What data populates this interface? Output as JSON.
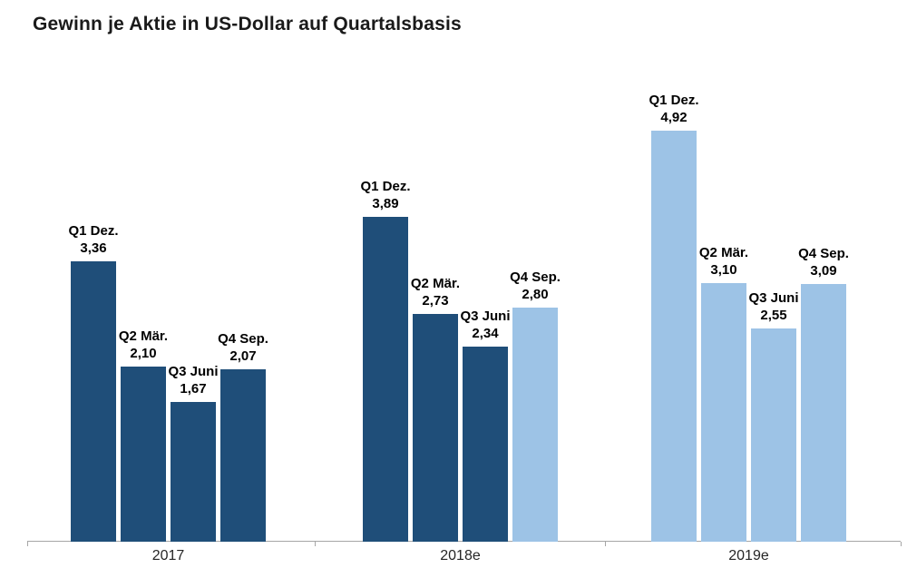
{
  "chart_data": {
    "type": "bar",
    "title": "Gewinn je Aktie in US-Dollar auf Quartalsbasis",
    "xlabel": "",
    "ylabel": "",
    "ylim": [
      0,
      5.4
    ],
    "grid": false,
    "legend": null,
    "value_decimal_separator": ",",
    "series_colors": {
      "actual": "#1F4E79",
      "estimate": "#9DC3E6"
    },
    "axis_color": "#A6A6A6",
    "groups": [
      {
        "label": "2017",
        "bars": [
          {
            "name": "Q1 Dez.",
            "value": 3.36,
            "value_label": "3,36",
            "style": "actual"
          },
          {
            "name": "Q2 Mär.",
            "value": 2.1,
            "value_label": "2,10",
            "style": "actual"
          },
          {
            "name": "Q3 Juni",
            "value": 1.67,
            "value_label": "1,67",
            "style": "actual"
          },
          {
            "name": "Q4 Sep.",
            "value": 2.07,
            "value_label": "2,07",
            "style": "actual"
          }
        ]
      },
      {
        "label": "2018e",
        "bars": [
          {
            "name": "Q1 Dez.",
            "value": 3.89,
            "value_label": "3,89",
            "style": "actual"
          },
          {
            "name": "Q2 Mär.",
            "value": 2.73,
            "value_label": "2,73",
            "style": "actual"
          },
          {
            "name": "Q3 Juni",
            "value": 2.34,
            "value_label": "2,34",
            "style": "actual"
          },
          {
            "name": "Q4 Sep.",
            "value": 2.8,
            "value_label": "2,80",
            "style": "estimate"
          }
        ]
      },
      {
        "label": "2019e",
        "bars": [
          {
            "name": "Q1 Dez.",
            "value": 4.92,
            "value_label": "4,92",
            "style": "estimate"
          },
          {
            "name": "Q2 Mär.",
            "value": 3.1,
            "value_label": "3,10",
            "style": "estimate"
          },
          {
            "name": "Q3 Juni",
            "value": 2.55,
            "value_label": "2,55",
            "style": "estimate"
          },
          {
            "name": "Q4 Sep.",
            "value": 3.09,
            "value_label": "3,09",
            "style": "estimate"
          }
        ]
      }
    ]
  }
}
